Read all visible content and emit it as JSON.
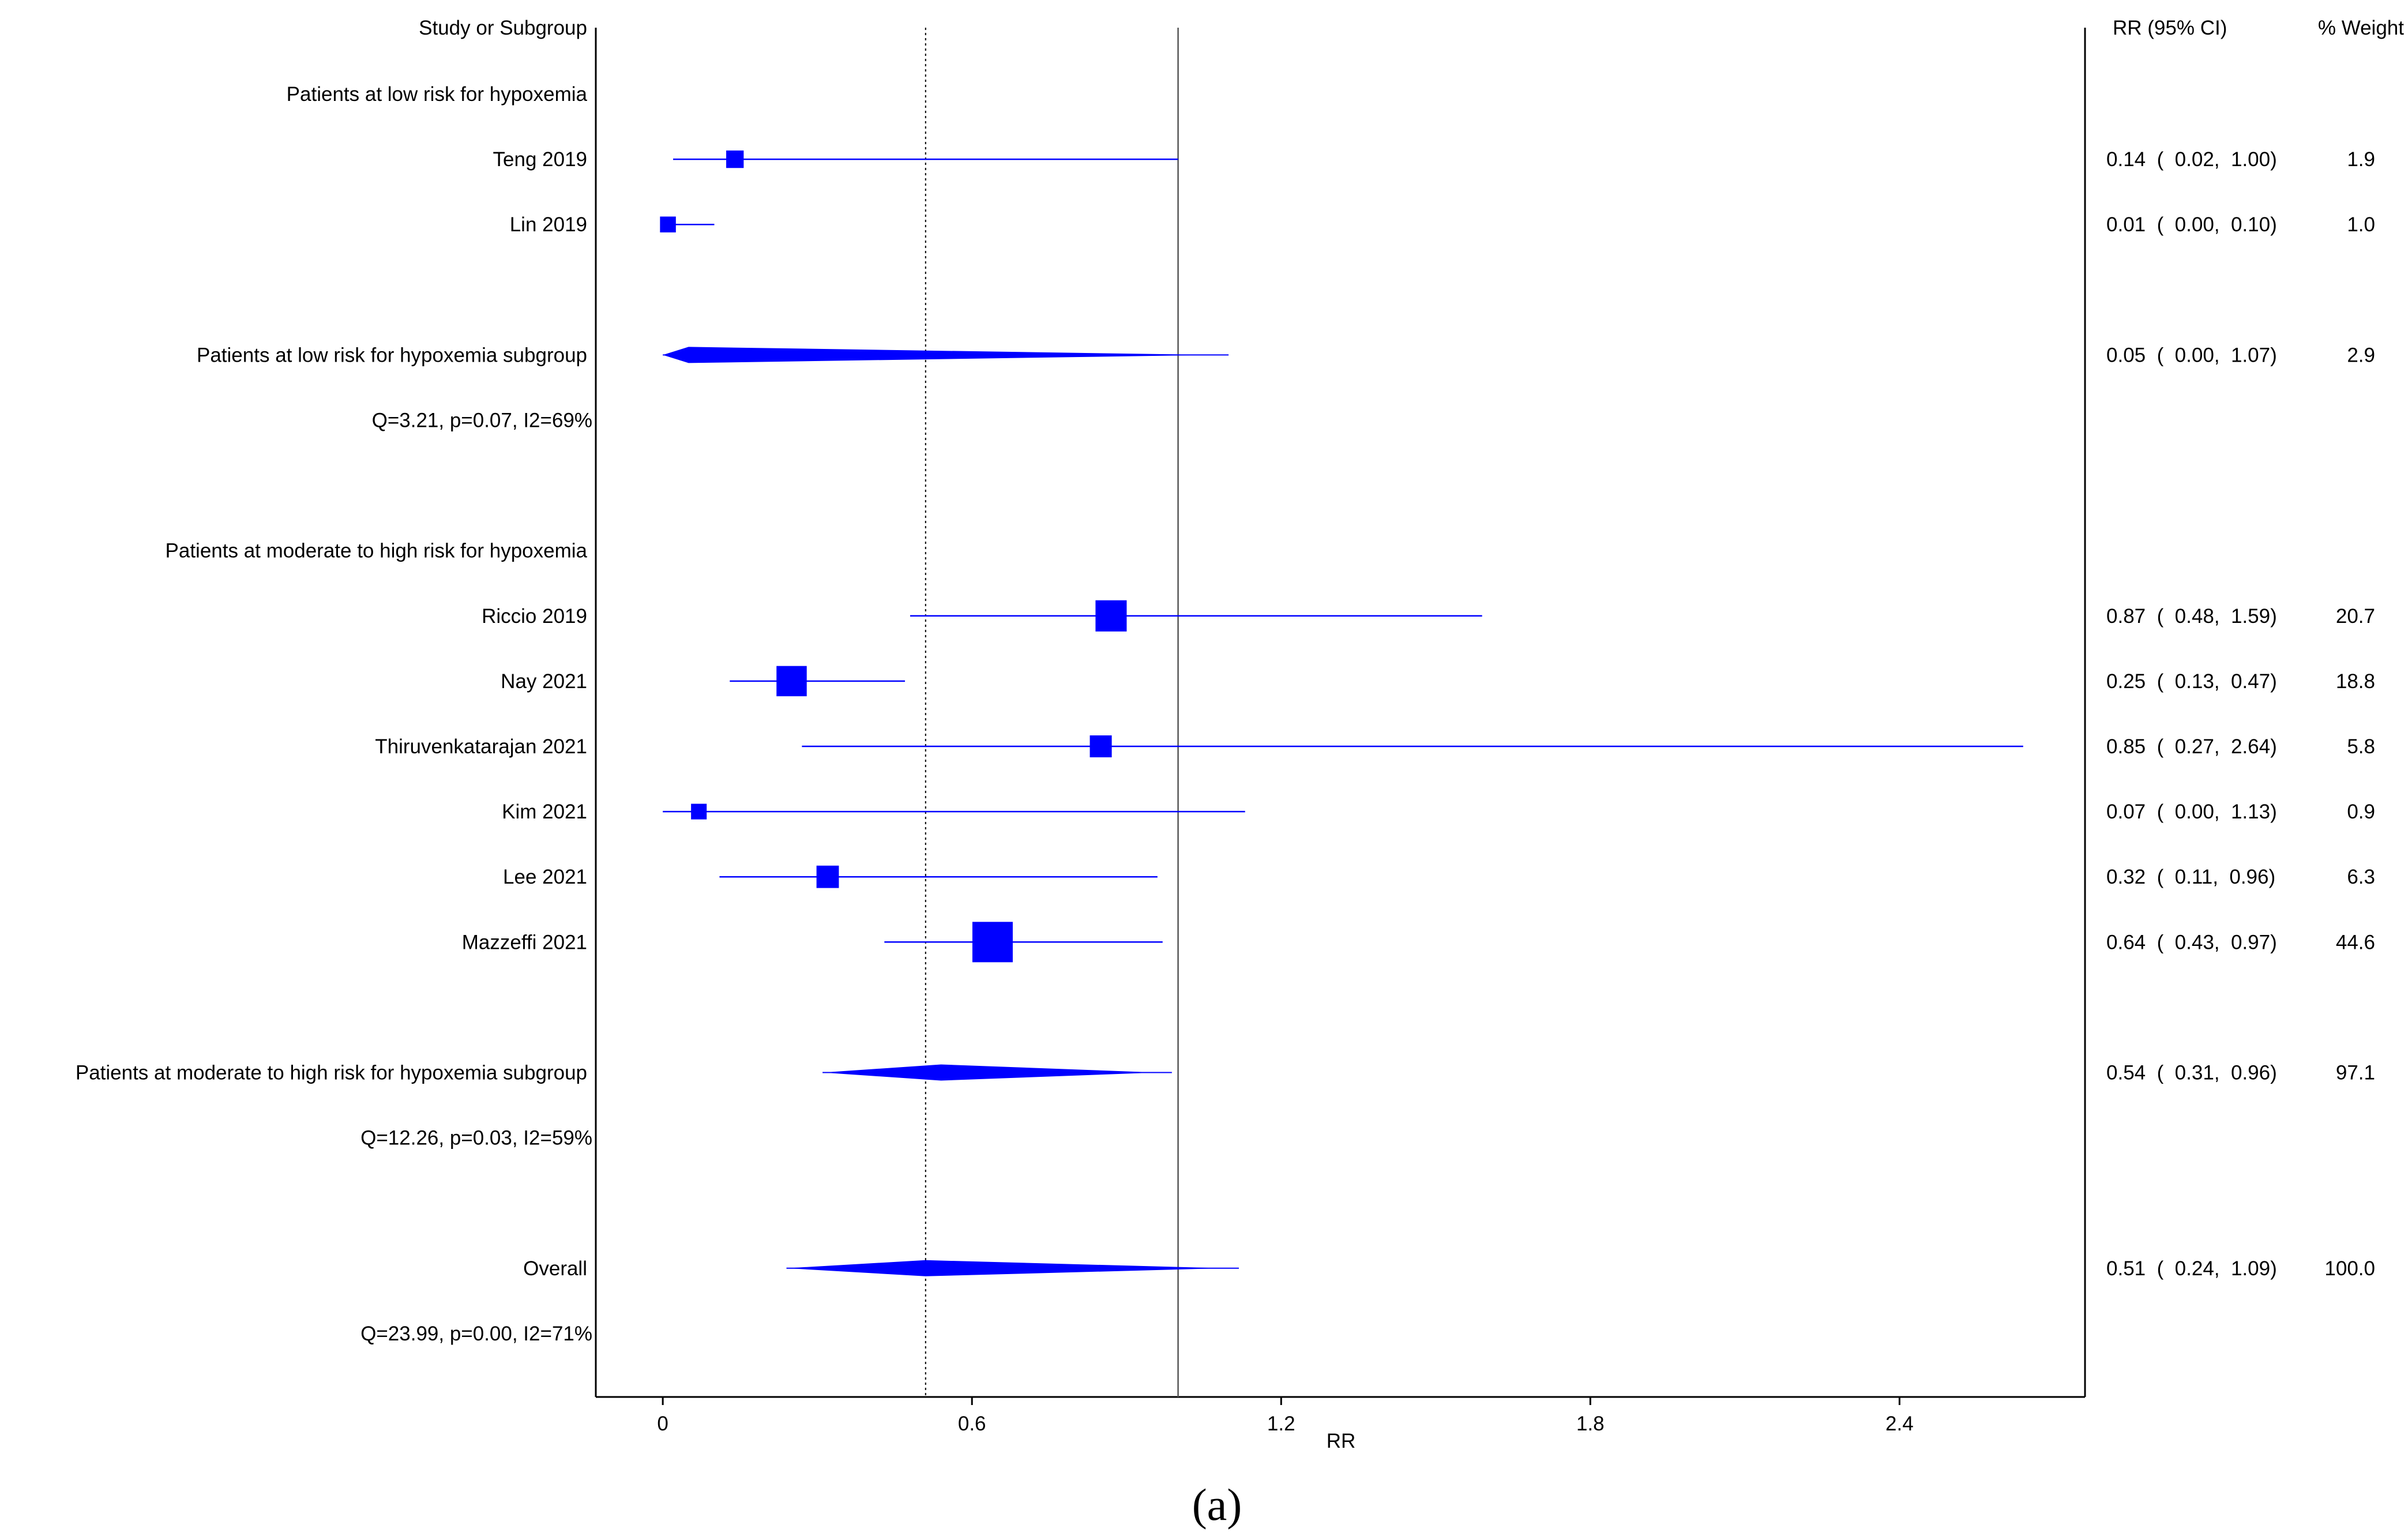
{
  "chart_data": {
    "type": "forest",
    "xlabel": "RR",
    "xlim": [
      -0.13,
      2.76
    ],
    "xticks": [
      0,
      0.6,
      1.2,
      1.8,
      2.4
    ],
    "xtick_labels": [
      "0",
      "0.6",
      "1.2",
      "1.8",
      "2.4"
    ],
    "null_line": 1.0,
    "overall_line": 0.51,
    "columns": {
      "study": "Study or Subgroup",
      "ci": "RR (95% CI)",
      "weight": "% Weight"
    },
    "caption": "(a)",
    "rows": [
      {
        "kind": "header",
        "label": "Patients at low risk for hypoxemia"
      },
      {
        "kind": "study",
        "label": "Teng 2019",
        "rr": 0.14,
        "lo": 0.02,
        "hi": 1.0,
        "ci_text": "0.14  (  0.02,  1.00)",
        "weight_text": "1.9",
        "weight": 1.9
      },
      {
        "kind": "study",
        "label": "Lin 2019",
        "rr": 0.01,
        "lo": 0.0,
        "hi": 0.1,
        "ci_text": "0.01  (  0.00,  0.10)",
        "weight_text": "1.0",
        "weight": 1.0
      },
      {
        "kind": "blank"
      },
      {
        "kind": "subtotal",
        "label": "Patients at low risk for hypoxemia subgroup",
        "rr": 0.05,
        "lo": 0.0,
        "hi": 1.07,
        "ci_text": "0.05  (  0.00,  1.07)",
        "weight_text": "2.9",
        "weight": 2.9
      },
      {
        "kind": "stats",
        "label": "Q=3.21, p=0.07, I2=69%"
      },
      {
        "kind": "blank"
      },
      {
        "kind": "header",
        "label": "Patients at moderate to high risk for hypoxemia"
      },
      {
        "kind": "study",
        "label": "Riccio 2019",
        "rr": 0.87,
        "lo": 0.48,
        "hi": 1.59,
        "ci_text": "0.87  (  0.48,  1.59)",
        "weight_text": "20.7",
        "weight": 20.7
      },
      {
        "kind": "study",
        "label": "Nay 2021",
        "rr": 0.25,
        "lo": 0.13,
        "hi": 0.47,
        "ci_text": "0.25  (  0.13,  0.47)",
        "weight_text": "18.8",
        "weight": 18.8
      },
      {
        "kind": "study",
        "label": "Thiruvenkatarajan 2021",
        "rr": 0.85,
        "lo": 0.27,
        "hi": 2.64,
        "ci_text": "0.85  (  0.27,  2.64)",
        "weight_text": "5.8",
        "weight": 5.8
      },
      {
        "kind": "study",
        "label": "Kim 2021",
        "rr": 0.07,
        "lo": 0.0,
        "hi": 1.13,
        "ci_text": "0.07  (  0.00,  1.13)",
        "weight_text": "0.9",
        "weight": 0.9
      },
      {
        "kind": "study",
        "label": "Lee 2021",
        "rr": 0.32,
        "lo": 0.11,
        "hi": 0.96,
        "ci_text": "0.32  (  0.11,  0.96)",
        "weight_text": "6.3",
        "weight": 6.3
      },
      {
        "kind": "study",
        "label": "Mazzeffi 2021",
        "rr": 0.64,
        "lo": 0.43,
        "hi": 0.97,
        "ci_text": "0.64  (  0.43,  0.97)",
        "weight_text": "44.6",
        "weight": 44.6
      },
      {
        "kind": "blank"
      },
      {
        "kind": "subtotal",
        "label": "Patients at moderate to high risk for hypoxemia subgroup",
        "rr": 0.54,
        "lo": 0.31,
        "hi": 0.96,
        "ci_text": "0.54  (  0.31,  0.96)",
        "weight_text": "97.1",
        "weight": 97.1
      },
      {
        "kind": "stats",
        "label": "Q=12.26, p=0.03, I2=59%"
      },
      {
        "kind": "blank"
      },
      {
        "kind": "subtotal",
        "label": "Overall",
        "rr": 0.51,
        "lo": 0.24,
        "hi": 1.09,
        "ci_text": "0.51  (  0.24,  1.09)",
        "weight_text": "100.0",
        "weight": 100.0
      },
      {
        "kind": "stats",
        "label": "Q=23.99, p=0.00, I2=71%"
      }
    ],
    "colors": {
      "marker": "#0000ff",
      "axis": "#000000",
      "ref_line": "#555555"
    }
  }
}
